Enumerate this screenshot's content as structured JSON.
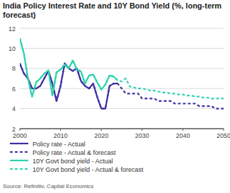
{
  "chart_data": {
    "type": "line",
    "title": "India Policy Interest Rate and 10Y Bond Yield (%, long-term forecast)",
    "source": "Source: Refinitiv, Capital Economics",
    "x": [
      2000,
      2001,
      2002,
      2003,
      2004,
      2005,
      2006,
      2007,
      2008,
      2009,
      2010,
      2011,
      2012,
      2013,
      2014,
      2015,
      2016,
      2017,
      2018,
      2019,
      2020,
      2021,
      2022,
      2023,
      2024,
      2025,
      2026,
      2027,
      2028,
      2029,
      2030,
      2031,
      2032,
      2033,
      2034,
      2035,
      2036,
      2037,
      2038,
      2039,
      2040,
      2041,
      2042,
      2043,
      2044,
      2045,
      2046,
      2047,
      2048,
      2049,
      2050
    ],
    "xlim": [
      2000,
      2050
    ],
    "xticks": [
      2000,
      2010,
      2020,
      2030,
      2040,
      2050
    ],
    "ylim": [
      2,
      12
    ],
    "yticks": [
      2,
      4,
      6,
      8,
      10,
      12
    ],
    "grid": true,
    "legend": "bottom",
    "series": [
      {
        "name": "Policy rate - Actual",
        "color": "#3d31a3",
        "line_style": "solid",
        "values": [
          8.5,
          7.5,
          7.0,
          6.0,
          6.0,
          6.25,
          7.0,
          7.75,
          6.5,
          4.75,
          6.25,
          8.5,
          8.0,
          7.75,
          8.0,
          6.75,
          6.25,
          6.0,
          6.5,
          5.15,
          4.0,
          4.0,
          6.25,
          6.5,
          6.5,
          null,
          null,
          null,
          null,
          null,
          null,
          null,
          null,
          null,
          null,
          null,
          null,
          null,
          null,
          null,
          null,
          null,
          null,
          null,
          null,
          null,
          null,
          null,
          null,
          null,
          null
        ]
      },
      {
        "name": "Policy rate - Actual & forecast",
        "color": "#3d31a3",
        "line_style": "dashed",
        "values": [
          8.5,
          7.5,
          7.0,
          6.0,
          6.0,
          6.25,
          7.0,
          7.75,
          6.5,
          4.75,
          6.25,
          8.5,
          8.0,
          7.75,
          8.0,
          6.75,
          6.25,
          6.0,
          6.5,
          5.15,
          4.0,
          4.0,
          6.25,
          6.5,
          6.5,
          6.0,
          5.5,
          5.5,
          5.5,
          5.5,
          5.0,
          5.0,
          5.0,
          5.0,
          4.75,
          4.75,
          4.75,
          4.75,
          4.5,
          4.5,
          4.5,
          4.5,
          4.5,
          4.5,
          4.25,
          4.25,
          4.25,
          4.25,
          4.0,
          4.0,
          4.0
        ]
      },
      {
        "name": "10Y Govt bond yield - Actual",
        "color": "#2fd3ae",
        "line_style": "solid",
        "values": [
          11.0,
          9.5,
          7.0,
          5.2,
          6.6,
          7.0,
          7.5,
          7.8,
          5.3,
          7.6,
          7.9,
          8.4,
          8.0,
          8.8,
          7.9,
          7.7,
          6.5,
          7.3,
          7.4,
          6.6,
          5.9,
          6.4,
          7.3,
          7.2,
          6.8,
          null,
          null,
          null,
          null,
          null,
          null,
          null,
          null,
          null,
          null,
          null,
          null,
          null,
          null,
          null,
          null,
          null,
          null,
          null,
          null,
          null,
          null,
          null,
          null,
          null,
          null
        ]
      },
      {
        "name": "10Y Govt bond yield - Actual & forecast",
        "color": "#2fd3ae",
        "line_style": "dashed",
        "values": [
          11.0,
          9.5,
          7.0,
          5.2,
          6.6,
          7.0,
          7.5,
          7.8,
          5.3,
          7.6,
          7.9,
          8.4,
          8.0,
          8.8,
          7.9,
          7.7,
          6.5,
          7.3,
          7.4,
          6.6,
          5.9,
          6.4,
          7.3,
          7.2,
          6.8,
          6.7,
          7.0,
          6.2,
          6.1,
          6.0,
          6.0,
          5.9,
          5.8,
          5.8,
          5.7,
          5.6,
          5.6,
          5.5,
          5.5,
          5.4,
          5.4,
          5.3,
          5.3,
          5.2,
          5.2,
          5.1,
          5.1,
          5.0,
          5.0,
          5.0,
          5.0
        ]
      }
    ]
  }
}
